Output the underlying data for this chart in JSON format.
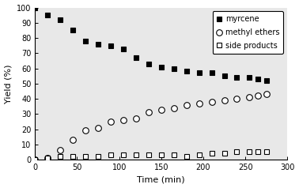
{
  "myrcene_time": [
    0,
    15,
    30,
    45,
    60,
    75,
    90,
    105,
    120,
    135,
    150,
    165,
    180,
    195,
    210,
    225,
    240,
    255,
    265,
    275
  ],
  "myrcene_yield": [
    100,
    95,
    92,
    85,
    78,
    76,
    75,
    73,
    67,
    63,
    61,
    60,
    58,
    57,
    57,
    55,
    54,
    54,
    53,
    52
  ],
  "methyl_time": [
    0,
    15,
    30,
    45,
    60,
    75,
    90,
    105,
    120,
    135,
    150,
    165,
    180,
    195,
    210,
    225,
    240,
    255,
    265,
    275
  ],
  "methyl_yield": [
    0,
    1,
    6,
    13,
    19,
    21,
    25,
    26,
    27,
    31,
    33,
    34,
    36,
    37,
    38,
    39,
    40,
    41,
    42,
    43
  ],
  "side_time": [
    0,
    15,
    30,
    45,
    60,
    75,
    90,
    105,
    120,
    135,
    150,
    165,
    180,
    195,
    210,
    225,
    240,
    255,
    265,
    275
  ],
  "side_yield": [
    0,
    1,
    2,
    2,
    2,
    2,
    3,
    3,
    3,
    3,
    3,
    3,
    2,
    3,
    4,
    4,
    5,
    5,
    5,
    5
  ],
  "xlabel": "Time (min)",
  "ylabel": "Yield (%)",
  "xlim": [
    0,
    300
  ],
  "ylim": [
    0,
    100
  ],
  "xticks": [
    0,
    50,
    100,
    150,
    200,
    250,
    300
  ],
  "yticks": [
    0,
    10,
    20,
    30,
    40,
    50,
    60,
    70,
    80,
    90,
    100
  ],
  "legend_labels": [
    "myrcene",
    "methyl ethers",
    "side products"
  ],
  "marker_size": 4.5,
  "font_size_axis": 8,
  "font_size_tick": 7,
  "font_size_legend": 7
}
